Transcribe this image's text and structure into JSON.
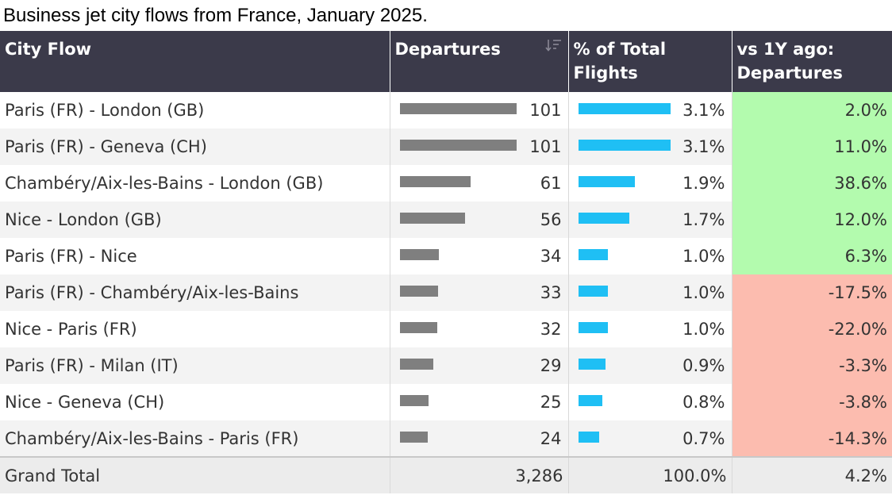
{
  "title": "Business jet city flows from France, January 2025.",
  "columns": {
    "city_flow": "City Flow",
    "departures": "Departures",
    "pct_total": "% of Total Flights",
    "vs_1y": "vs 1Y ago: Departures"
  },
  "icons": {
    "sort": "sort-descending-icon"
  },
  "colors": {
    "header_bg": "#3b3a4a",
    "departures_bar": "#7f7f7f",
    "pct_bar": "#1fbff4",
    "positive_change": "#b3fbae",
    "negative_change": "#fcbcaf"
  },
  "chart_data": {
    "type": "table",
    "title": "Business jet city flows from France, January 2025.",
    "columns": [
      "City Flow",
      "Departures",
      "% of Total Flights",
      "vs 1Y ago: Departures"
    ],
    "rows": [
      {
        "city_flow": "Paris (FR) - London (GB)",
        "departures": 101,
        "departures_label": "101",
        "pct_total": 3.1,
        "pct_label": "3.1%",
        "vs_1y": 2.0,
        "vs_1y_label": "2.0%"
      },
      {
        "city_flow": "Paris (FR) - Geneva (CH)",
        "departures": 101,
        "departures_label": "101",
        "pct_total": 3.1,
        "pct_label": "3.1%",
        "vs_1y": 11.0,
        "vs_1y_label": "11.0%"
      },
      {
        "city_flow": "Chambéry/Aix-les-Bains - London (GB)",
        "departures": 61,
        "departures_label": "61",
        "pct_total": 1.9,
        "pct_label": "1.9%",
        "vs_1y": 38.6,
        "vs_1y_label": "38.6%"
      },
      {
        "city_flow": "Nice - London (GB)",
        "departures": 56,
        "departures_label": "56",
        "pct_total": 1.7,
        "pct_label": "1.7%",
        "vs_1y": 12.0,
        "vs_1y_label": "12.0%"
      },
      {
        "city_flow": "Paris (FR) - Nice",
        "departures": 34,
        "departures_label": "34",
        "pct_total": 1.0,
        "pct_label": "1.0%",
        "vs_1y": 6.3,
        "vs_1y_label": "6.3%"
      },
      {
        "city_flow": "Paris (FR) - Chambéry/Aix-les-Bains",
        "departures": 33,
        "departures_label": "33",
        "pct_total": 1.0,
        "pct_label": "1.0%",
        "vs_1y": -17.5,
        "vs_1y_label": "-17.5%"
      },
      {
        "city_flow": "Nice - Paris (FR)",
        "departures": 32,
        "departures_label": "32",
        "pct_total": 1.0,
        "pct_label": "1.0%",
        "vs_1y": -22.0,
        "vs_1y_label": "-22.0%"
      },
      {
        "city_flow": "Paris (FR) - Milan (IT)",
        "departures": 29,
        "departures_label": "29",
        "pct_total": 0.9,
        "pct_label": "0.9%",
        "vs_1y": -3.3,
        "vs_1y_label": "-3.3%"
      },
      {
        "city_flow": "Nice - Geneva (CH)",
        "departures": 25,
        "departures_label": "25",
        "pct_total": 0.8,
        "pct_label": "0.8%",
        "vs_1y": -3.8,
        "vs_1y_label": "-3.8%"
      },
      {
        "city_flow": "Chambéry/Aix-les-Bains - Paris (FR)",
        "departures": 24,
        "departures_label": "24",
        "pct_total": 0.7,
        "pct_label": "0.7%",
        "vs_1y": -14.3,
        "vs_1y_label": "-14.3%"
      }
    ],
    "total": {
      "label": "Grand Total",
      "departures": "3,286",
      "pct_total": "100.0%",
      "vs_1y": "4.2%"
    }
  }
}
